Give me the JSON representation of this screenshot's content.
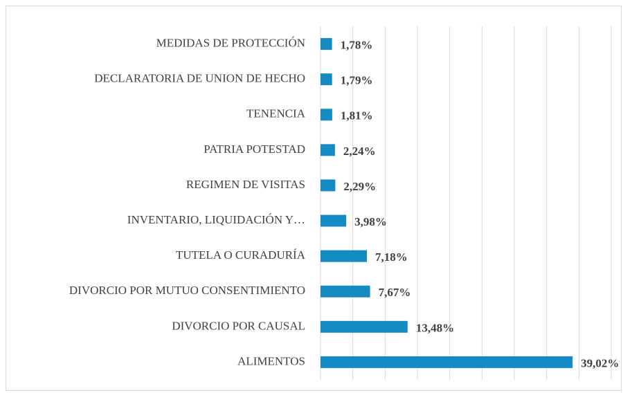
{
  "chart_data": {
    "type": "bar",
    "orientation": "horizontal",
    "categories": [
      "MEDIDAS DE PROTECCIÓN",
      "DECLARATORIA DE UNION DE HECHO",
      "TENENCIA",
      "PATRIA POTESTAD",
      "REGIMEN DE VISITAS",
      "INVENTARIO, LIQUIDACIÓN Y…",
      "TUTELA O CURADURÍA",
      "DIVORCIO POR MUTUO CONSENTIMIENTO",
      "DIVORCIO POR CAUSAL",
      "ALIMENTOS"
    ],
    "values": [
      1.78,
      1.79,
      1.81,
      2.24,
      2.29,
      3.98,
      7.18,
      7.67,
      13.48,
      39.02
    ],
    "value_labels": [
      "1,78%",
      "1,79%",
      "1,81%",
      "2,24%",
      "2,29%",
      "3,98%",
      "7,18%",
      "7,67%",
      "13,48%",
      "39,02%"
    ],
    "color": "#168bc3",
    "xlim": [
      0,
      45
    ],
    "xticks": [
      0,
      5,
      10,
      15,
      20,
      25,
      30,
      35,
      40,
      45
    ],
    "grid": true
  }
}
